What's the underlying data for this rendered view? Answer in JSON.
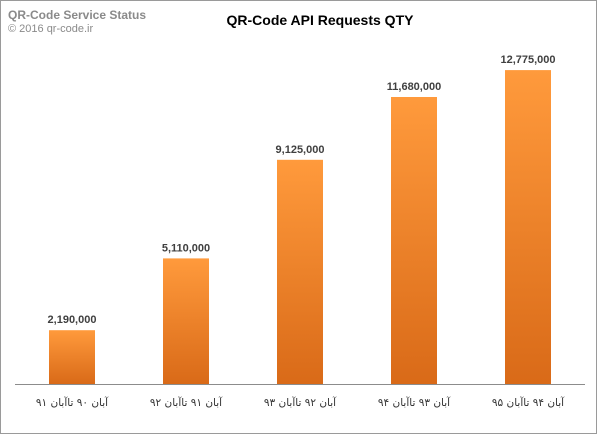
{
  "watermark": {
    "title": "QR-Code  Service Status",
    "copyright": "© 2016 qr-code.ir"
  },
  "chart_data": {
    "type": "bar",
    "title": "QR-Code API Requests QTY",
    "xlabel": "",
    "ylabel": "",
    "categories": [
      "آبان ۹۰  تاآبان ۹۱",
      "آبان ۹۱  تاآبان ۹۲",
      "آبان ۹۲  تاآبان ۹۳",
      "آبان ۹۳  تاآبان ۹۴",
      "آبان ۹۴  تاآبان ۹۵"
    ],
    "values": [
      2190000,
      5110000,
      9125000,
      11680000,
      12775000
    ],
    "data_labels": [
      "2,190,000",
      "5,110,000",
      "9,125,000",
      "11,680,000",
      "12,775,000"
    ],
    "ylim": [
      0,
      14000000
    ],
    "grid": false,
    "legend": "none",
    "colors": {
      "bar_top": "#ff9a3c",
      "bar_bottom": "#d96a18",
      "axis": "#8c8c8c"
    }
  }
}
